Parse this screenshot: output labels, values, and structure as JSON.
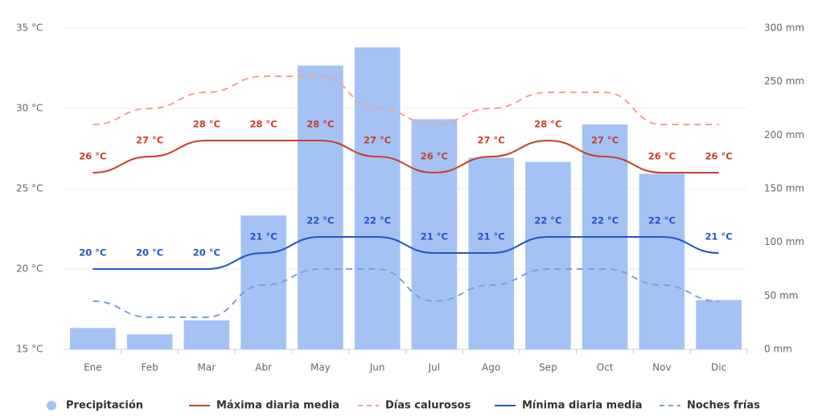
{
  "chart_data": {
    "type": "combo",
    "categories": [
      "Ene",
      "Feb",
      "Mar",
      "Abr",
      "May",
      "Jun",
      "Jul",
      "Ago",
      "Sep",
      "Oct",
      "Nov",
      "Dic"
    ],
    "ylim": [
      15,
      35
    ],
    "yticks": [
      {
        "value": 15,
        "label": "15 °C"
      },
      {
        "value": 20,
        "label": "20 °C"
      },
      {
        "value": 25,
        "label": "25 °C"
      },
      {
        "value": 30,
        "label": "30 °C"
      },
      {
        "value": 35,
        "label": "35 °C"
      }
    ],
    "y2lim": [
      0,
      300
    ],
    "y2ticks": [
      {
        "value": 0,
        "label": "0 mm"
      },
      {
        "value": 50,
        "label": "50 mm"
      },
      {
        "value": 100,
        "label": "100 mm"
      },
      {
        "value": 150,
        "label": "150 mm"
      },
      {
        "value": 200,
        "label": "200 mm"
      },
      {
        "value": 250,
        "label": "250 mm"
      },
      {
        "value": 300,
        "label": "300 mm"
      }
    ],
    "grid": true,
    "series": [
      {
        "name": "Precipitación",
        "type": "bar",
        "axis": "y2",
        "color": "#a4c2f4",
        "values": [
          20,
          14,
          27,
          125,
          265,
          282,
          215,
          179,
          175,
          210,
          164,
          46
        ]
      },
      {
        "name": "Máxima diaria media",
        "type": "line",
        "color": "#c8412b",
        "dashed": false,
        "values": [
          26,
          27,
          28,
          28,
          28,
          27,
          26,
          27,
          28,
          27,
          26,
          26
        ],
        "value_labels": [
          "26 °C",
          "27 °C",
          "28 °C",
          "28 °C",
          "28 °C",
          "27 °C",
          "26 °C",
          "27 °C",
          "28 °C",
          "27 °C",
          "26 °C",
          "26 °C"
        ]
      },
      {
        "name": "Días calurosos",
        "type": "line",
        "color": "#f4a090",
        "dashed": true,
        "values": [
          29,
          30,
          31,
          32,
          32,
          30,
          29,
          30,
          31,
          31,
          29,
          29
        ]
      },
      {
        "name": "Mínima diaria media",
        "type": "line",
        "color": "#2456c4",
        "dashed": false,
        "values": [
          20,
          20,
          20,
          21,
          22,
          22,
          21,
          21,
          22,
          22,
          22,
          21
        ],
        "value_labels": [
          "20 °C",
          "20 °C",
          "20 °C",
          "21 °C",
          "22 °C",
          "22 °C",
          "21 °C",
          "21 °C",
          "22 °C",
          "22 °C",
          "22 °C",
          "21 °C"
        ]
      },
      {
        "name": "Noches frías",
        "type": "line",
        "color": "#7a9fe0",
        "dashed": true,
        "values": [
          18,
          17,
          17,
          19,
          20,
          20,
          18,
          19,
          20,
          20,
          19,
          18
        ]
      }
    ]
  }
}
